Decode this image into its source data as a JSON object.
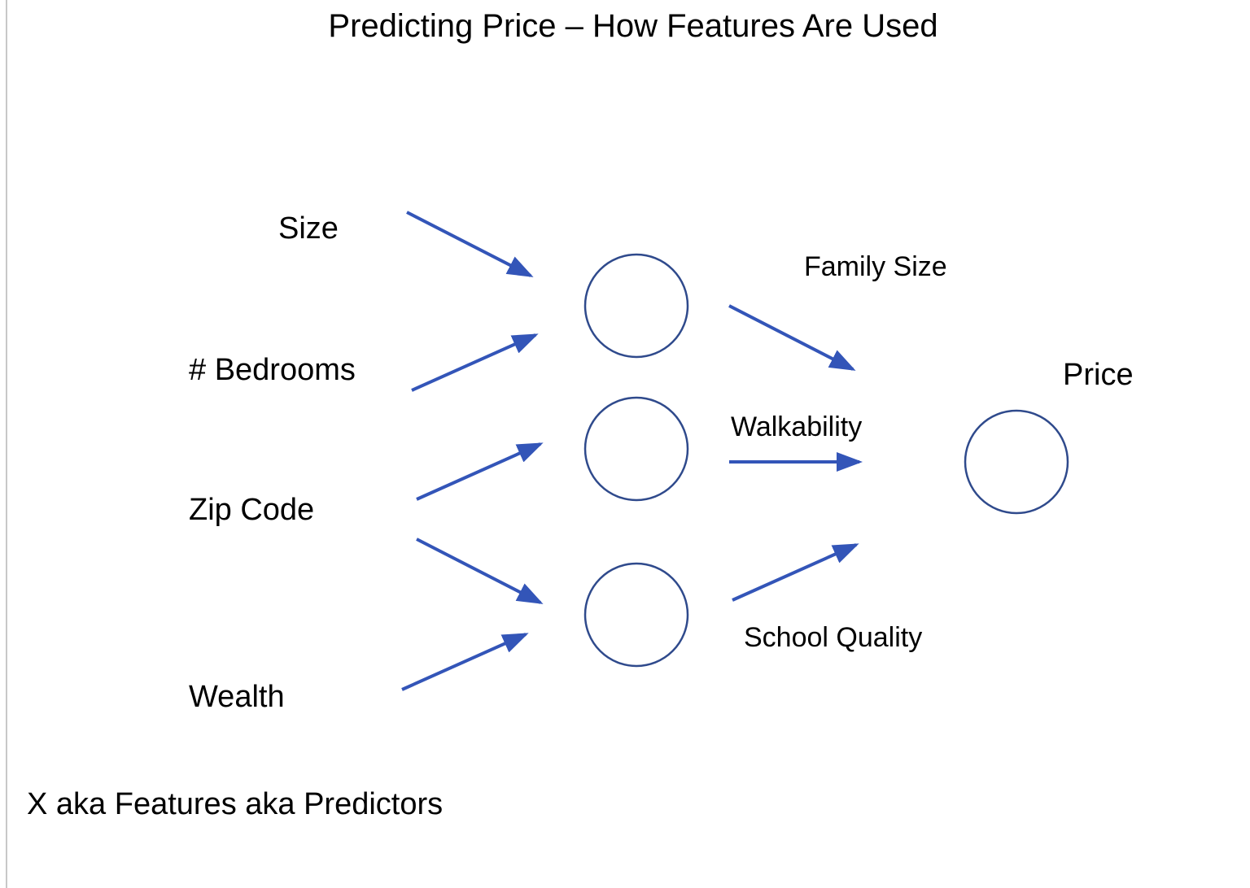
{
  "title": "Predicting Price – How Features Are Used",
  "inputs": {
    "size": "Size",
    "bedrooms": "# Bedrooms",
    "zip_code": "Zip Code",
    "wealth": "Wealth"
  },
  "hidden": {
    "family_size": "Family Size",
    "walkability": "Walkability",
    "school_quality": "School Quality"
  },
  "output": "Price",
  "footer": "X aka Features aka Predictors",
  "colors": {
    "arrow": "#3355b8",
    "node_stroke": "#2f4a8c",
    "text": "#000000",
    "border": "#c8c8c8"
  }
}
